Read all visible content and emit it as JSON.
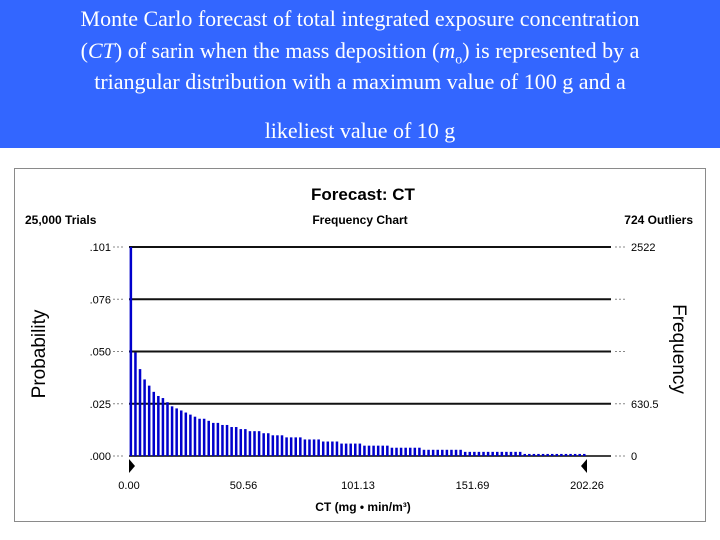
{
  "slide": {
    "title_line1": "Monte Carlo forecast of total integrated exposure concentration",
    "title_line2_pre": "(",
    "title_line2_ct": "CT",
    "title_line2_mid": ") of sarin when the mass deposition (",
    "title_line2_m": "m",
    "title_line2_sub": "o",
    "title_line2_post": ") is represented by a",
    "title_line3": "triangular distribution with a maximum value of 100 g and a",
    "title_line4": "likeliest value of 10 g",
    "header_color": "#3366ff"
  },
  "chart_data": {
    "type": "bar",
    "title": "Forecast: CT",
    "trials_label": "25,000 Trials",
    "subtitle": "Frequency Chart",
    "outliers_label": "724 Outliers",
    "ylabel_left": "Probability",
    "ylabel_right": "Frequency",
    "xlabel": "CT (mg • min/m³)",
    "x_ticks": [
      "0.00",
      "50.56",
      "101.13",
      "151.69",
      "202.26"
    ],
    "x_range": [
      0,
      202.26
    ],
    "y_ticks_left": [
      ".101",
      ".076",
      ".050",
      ".025",
      ".000"
    ],
    "y_ticks_right": [
      "2522",
      "",
      "",
      "630.5",
      "0"
    ],
    "ylim": [
      0,
      0.101
    ],
    "bar_color": "#0000cc",
    "bin_width": 2.0226,
    "values": [
      0.101,
      0.05,
      0.042,
      0.037,
      0.034,
      0.031,
      0.029,
      0.028,
      0.026,
      0.024,
      0.023,
      0.022,
      0.021,
      0.02,
      0.019,
      0.018,
      0.018,
      0.017,
      0.016,
      0.016,
      0.015,
      0.015,
      0.014,
      0.014,
      0.013,
      0.013,
      0.012,
      0.012,
      0.012,
      0.011,
      0.011,
      0.01,
      0.01,
      0.01,
      0.009,
      0.009,
      0.009,
      0.009,
      0.008,
      0.008,
      0.008,
      0.008,
      0.007,
      0.007,
      0.007,
      0.007,
      0.006,
      0.006,
      0.006,
      0.006,
      0.006,
      0.005,
      0.005,
      0.005,
      0.005,
      0.005,
      0.005,
      0.004,
      0.004,
      0.004,
      0.004,
      0.004,
      0.004,
      0.004,
      0.003,
      0.003,
      0.003,
      0.003,
      0.003,
      0.003,
      0.003,
      0.003,
      0.003,
      0.002,
      0.002,
      0.002,
      0.002,
      0.002,
      0.002,
      0.002,
      0.002,
      0.002,
      0.002,
      0.002,
      0.002,
      0.002,
      0.001,
      0.001,
      0.001,
      0.001,
      0.001,
      0.001,
      0.001,
      0.001,
      0.001,
      0.001,
      0.001,
      0.001,
      0.001,
      0.001
    ]
  }
}
